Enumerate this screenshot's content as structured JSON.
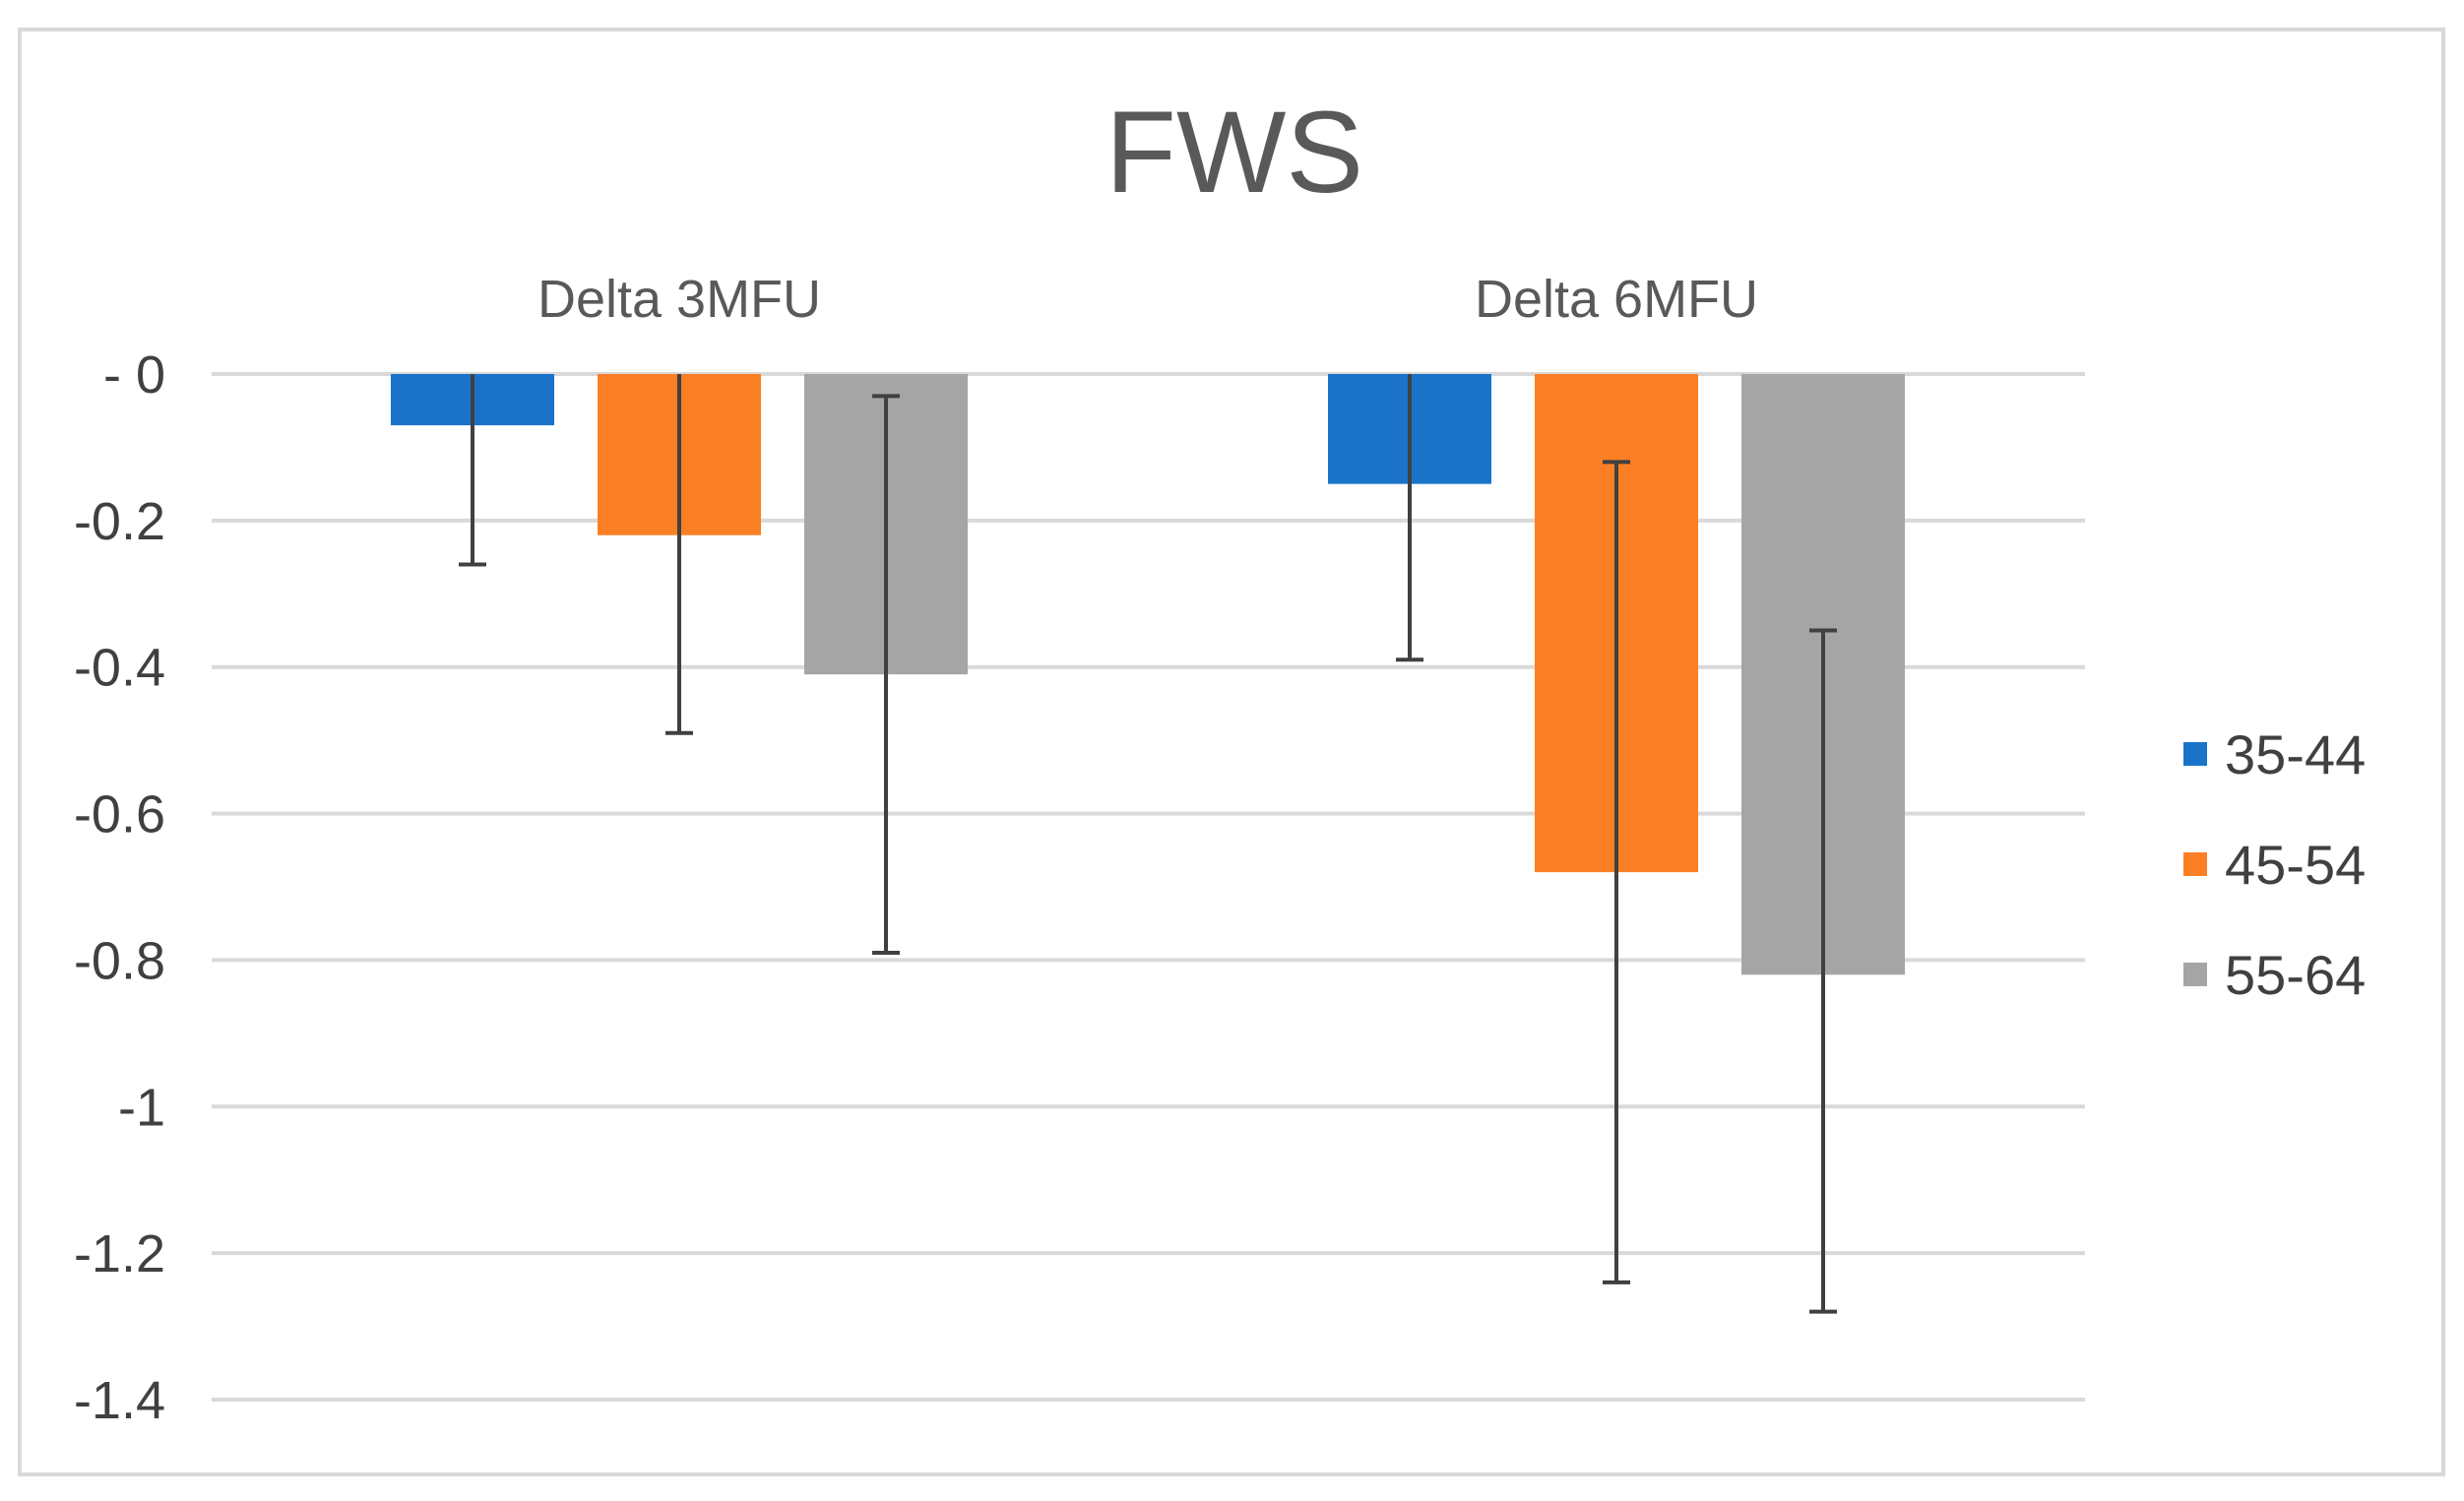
{
  "chart_data": {
    "type": "bar",
    "title": "FWS",
    "categories": [
      "Delta 3MFU",
      "Delta 6MFU"
    ],
    "category_axis_position": "top",
    "series": [
      {
        "name": "35-44",
        "color": "#1a73c9",
        "values": [
          -0.07,
          -0.15
        ],
        "error_low": [
          -0.26,
          -0.39
        ],
        "error_high": [
          0.0,
          0.0
        ]
      },
      {
        "name": "45-54",
        "color": "#fb7f24",
        "values": [
          -0.22,
          -0.68
        ],
        "error_low": [
          -0.49,
          -1.24
        ],
        "error_high": [
          0.0,
          -0.12
        ]
      },
      {
        "name": "55-64",
        "color": "#a5a5a5",
        "values": [
          -0.41,
          -0.82
        ],
        "error_low": [
          -0.79,
          -1.28
        ],
        "error_high": [
          -0.03,
          -0.35
        ]
      }
    ],
    "ylim": [
      -1.4,
      0
    ],
    "yticks": [
      0,
      -0.2,
      -0.4,
      -0.6,
      -0.8,
      -1,
      -1.2,
      -1.4
    ],
    "ytick_labels": [
      "- 0",
      "-0.2",
      "-0.4",
      "-0.6",
      "-0.8",
      "-1",
      "-1.2",
      "-1.4"
    ],
    "xlabel": "",
    "ylabel": "",
    "grid": true,
    "legend_position": "right"
  }
}
